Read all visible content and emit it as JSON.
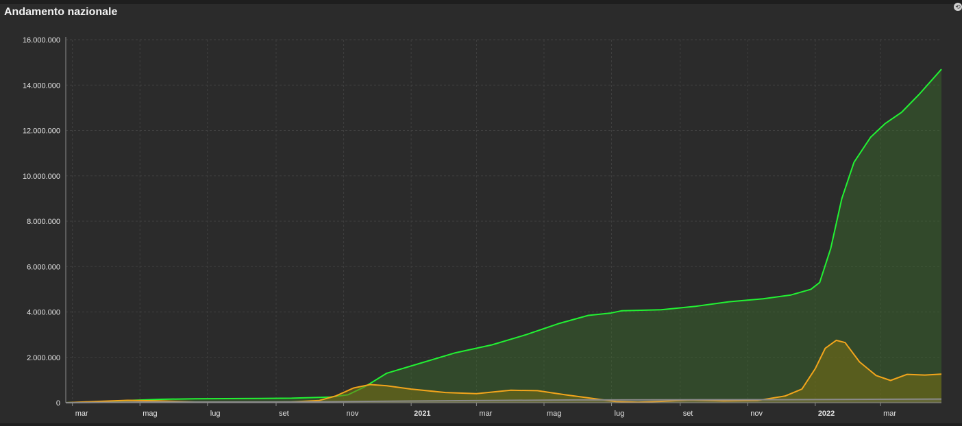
{
  "title": "Andamento nazionale",
  "colors": {
    "green": "#22f233",
    "orange": "#f2a51c",
    "gray": "#8a8a8a",
    "grid": "#404040",
    "axis": "#8c8c8c"
  },
  "chart_data": {
    "type": "area",
    "title": "Andamento nazionale",
    "xlabel": "",
    "ylabel": "",
    "grid": true,
    "x_range": [
      "2020-02-24",
      "2022-04-25"
    ],
    "ylim": [
      0,
      16000000
    ],
    "y_ticks": [
      {
        "value": 0,
        "label": "0"
      },
      {
        "value": 2000000,
        "label": "2.000.000"
      },
      {
        "value": 4000000,
        "label": "4.000.000"
      },
      {
        "value": 6000000,
        "label": "6.000.000"
      },
      {
        "value": 8000000,
        "label": "8.000.000"
      },
      {
        "value": 10000000,
        "label": "10.000.000"
      },
      {
        "value": 12000000,
        "label": "12.000.000"
      },
      {
        "value": 14000000,
        "label": "14.000.000"
      },
      {
        "value": 16000000,
        "label": "16.000.000"
      }
    ],
    "x_ticks": [
      {
        "date": "2020-03-01",
        "label": "mar",
        "bold": false
      },
      {
        "date": "2020-05-01",
        "label": "mag",
        "bold": false
      },
      {
        "date": "2020-07-01",
        "label": "lug",
        "bold": false
      },
      {
        "date": "2020-09-01",
        "label": "set",
        "bold": false
      },
      {
        "date": "2020-11-01",
        "label": "nov",
        "bold": false
      },
      {
        "date": "2021-01-01",
        "label": "2021",
        "bold": true
      },
      {
        "date": "2021-03-01",
        "label": "mar",
        "bold": false
      },
      {
        "date": "2021-05-01",
        "label": "mag",
        "bold": false
      },
      {
        "date": "2021-07-01",
        "label": "lug",
        "bold": false
      },
      {
        "date": "2021-09-01",
        "label": "set",
        "bold": false
      },
      {
        "date": "2021-11-01",
        "label": "nov",
        "bold": false
      },
      {
        "date": "2022-01-01",
        "label": "2022",
        "bold": true
      },
      {
        "date": "2022-03-01",
        "label": "mar",
        "bold": false
      }
    ],
    "series": [
      {
        "color": "#22f233",
        "fill": "rgba(60,110,45,0.45)",
        "points": [
          [
            "2020-02-24",
            0
          ],
          [
            "2020-03-20",
            40000
          ],
          [
            "2020-04-20",
            100000
          ],
          [
            "2020-05-20",
            150000
          ],
          [
            "2020-06-20",
            175000
          ],
          [
            "2020-08-01",
            185000
          ],
          [
            "2020-09-15",
            200000
          ],
          [
            "2020-10-20",
            250000
          ],
          [
            "2020-11-05",
            350000
          ],
          [
            "2020-11-20",
            700000
          ],
          [
            "2020-12-10",
            1300000
          ],
          [
            "2021-01-10",
            1750000
          ],
          [
            "2021-02-10",
            2200000
          ],
          [
            "2021-03-15",
            2550000
          ],
          [
            "2021-04-15",
            3000000
          ],
          [
            "2021-05-15",
            3500000
          ],
          [
            "2021-06-10",
            3850000
          ],
          [
            "2021-06-30",
            3950000
          ],
          [
            "2021-07-10",
            4050000
          ],
          [
            "2021-08-15",
            4100000
          ],
          [
            "2021-09-15",
            4250000
          ],
          [
            "2021-10-15",
            4450000
          ],
          [
            "2021-11-15",
            4580000
          ],
          [
            "2021-12-10",
            4750000
          ],
          [
            "2021-12-28",
            5000000
          ],
          [
            "2022-01-05",
            5300000
          ],
          [
            "2022-01-15",
            6800000
          ],
          [
            "2022-01-25",
            9000000
          ],
          [
            "2022-02-05",
            10600000
          ],
          [
            "2022-02-20",
            11700000
          ],
          [
            "2022-03-05",
            12300000
          ],
          [
            "2022-03-20",
            12800000
          ],
          [
            "2022-04-05",
            13600000
          ],
          [
            "2022-04-25",
            14700000
          ]
        ]
      },
      {
        "color": "#f2a51c",
        "fill": "rgba(120,110,20,0.55)",
        "points": [
          [
            "2020-02-24",
            0
          ],
          [
            "2020-03-25",
            60000
          ],
          [
            "2020-04-20",
            105000
          ],
          [
            "2020-05-20",
            80000
          ],
          [
            "2020-06-20",
            30000
          ],
          [
            "2020-08-01",
            15000
          ],
          [
            "2020-09-15",
            40000
          ],
          [
            "2020-10-10",
            100000
          ],
          [
            "2020-10-25",
            300000
          ],
          [
            "2020-11-10",
            650000
          ],
          [
            "2020-11-25",
            800000
          ],
          [
            "2020-12-10",
            750000
          ],
          [
            "2021-01-01",
            600000
          ],
          [
            "2021-02-01",
            450000
          ],
          [
            "2021-03-01",
            400000
          ],
          [
            "2021-04-01",
            550000
          ],
          [
            "2021-04-25",
            530000
          ],
          [
            "2021-05-20",
            350000
          ],
          [
            "2021-06-15",
            180000
          ],
          [
            "2021-07-05",
            50000
          ],
          [
            "2021-07-25",
            20000
          ],
          [
            "2021-08-15",
            60000
          ],
          [
            "2021-09-10",
            120000
          ],
          [
            "2021-10-10",
            80000
          ],
          [
            "2021-11-10",
            100000
          ],
          [
            "2021-12-05",
            300000
          ],
          [
            "2021-12-20",
            600000
          ],
          [
            "2022-01-01",
            1500000
          ],
          [
            "2022-01-10",
            2400000
          ],
          [
            "2022-01-20",
            2750000
          ],
          [
            "2022-01-28",
            2650000
          ],
          [
            "2022-02-10",
            1800000
          ],
          [
            "2022-02-25",
            1200000
          ],
          [
            "2022-03-10",
            980000
          ],
          [
            "2022-03-25",
            1250000
          ],
          [
            "2022-04-10",
            1220000
          ],
          [
            "2022-04-25",
            1260000
          ]
        ]
      },
      {
        "color": "#8a8a8a",
        "fill": "rgba(138,138,138,0.25)",
        "points": [
          [
            "2020-02-24",
            0
          ],
          [
            "2020-05-01",
            30000
          ],
          [
            "2020-10-01",
            35000
          ],
          [
            "2021-01-01",
            75000
          ],
          [
            "2021-06-01",
            125000
          ],
          [
            "2021-12-01",
            135000
          ],
          [
            "2022-04-25",
            162000
          ]
        ]
      }
    ]
  }
}
